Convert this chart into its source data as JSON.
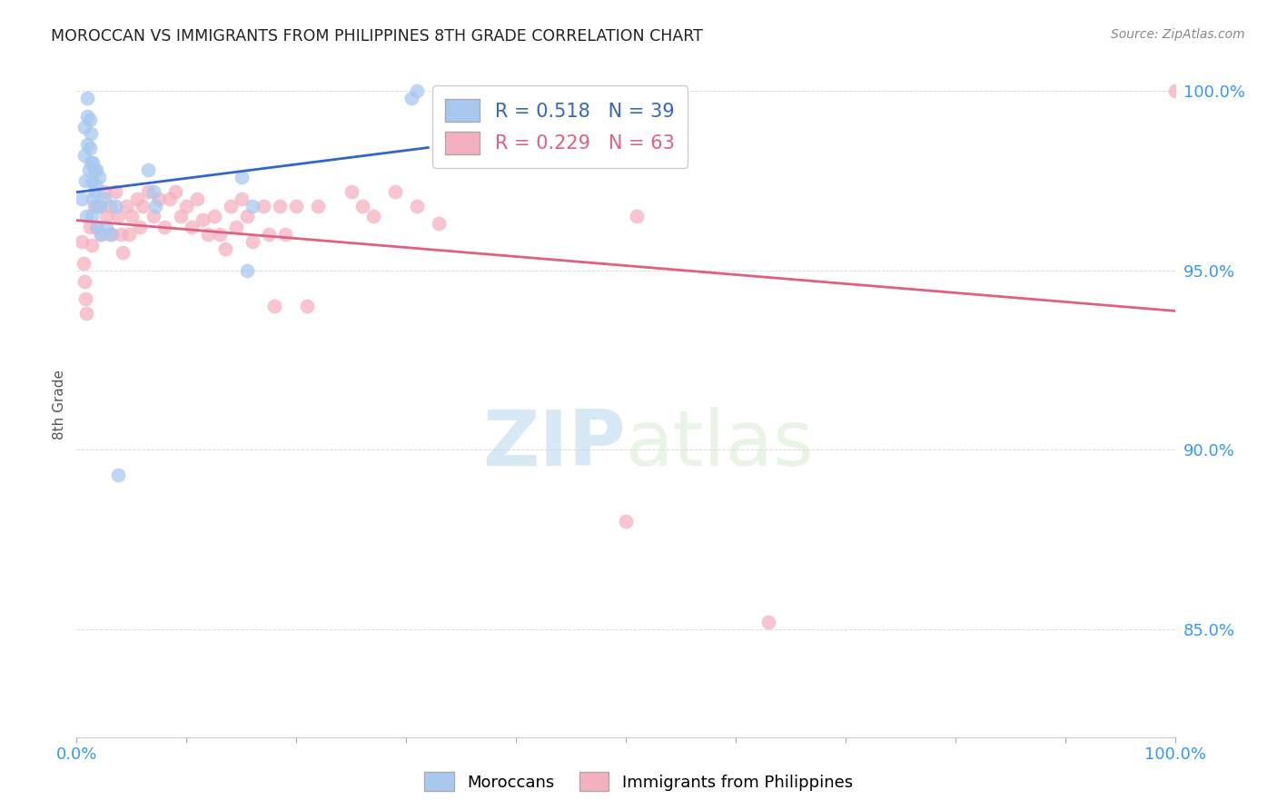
{
  "title": "MOROCCAN VS IMMIGRANTS FROM PHILIPPINES 8TH GRADE CORRELATION CHART",
  "source": "Source: ZipAtlas.com",
  "ylabel": "8th Grade",
  "xlim": [
    0.0,
    1.0
  ],
  "ylim": [
    0.82,
    1.005
  ],
  "yticks": [
    0.85,
    0.9,
    0.95,
    1.0
  ],
  "ytick_labels": [
    "85.0%",
    "90.0%",
    "95.0%",
    "100.0%"
  ],
  "xticks": [
    0.0,
    0.1,
    0.2,
    0.3,
    0.4,
    0.5,
    0.6,
    0.7,
    0.8,
    0.9,
    1.0
  ],
  "xtick_labels": [
    "0.0%",
    "",
    "",
    "",
    "",
    "",
    "",
    "",
    "",
    "",
    "100.0%"
  ],
  "blue_R": "0.518",
  "blue_N": "39",
  "pink_R": "0.229",
  "pink_N": "63",
  "blue_color": "#a8c8f0",
  "pink_color": "#f5b0c0",
  "blue_line_color": "#3366cc",
  "pink_line_color": "#e06080",
  "legend_label_blue": "Moroccans",
  "legend_label_pink": "Immigrants from Philippines",
  "watermark_zip": "ZIP",
  "watermark_atlas": "atlas",
  "blue_scatter_x": [
    0.005,
    0.007,
    0.007,
    0.008,
    0.009,
    0.01,
    0.01,
    0.01,
    0.011,
    0.012,
    0.012,
    0.013,
    0.013,
    0.014,
    0.014,
    0.015,
    0.015,
    0.016,
    0.016,
    0.017,
    0.018,
    0.018,
    0.019,
    0.02,
    0.021,
    0.022,
    0.025,
    0.027,
    0.03,
    0.035,
    0.038,
    0.065,
    0.07,
    0.072,
    0.15,
    0.155,
    0.16,
    0.305,
    0.31
  ],
  "blue_scatter_y": [
    0.97,
    0.99,
    0.982,
    0.975,
    0.965,
    0.998,
    0.993,
    0.985,
    0.978,
    0.992,
    0.984,
    0.988,
    0.98,
    0.975,
    0.965,
    0.98,
    0.97,
    0.978,
    0.972,
    0.974,
    0.978,
    0.968,
    0.962,
    0.976,
    0.968,
    0.96,
    0.97,
    0.962,
    0.96,
    0.968,
    0.893,
    0.978,
    0.972,
    0.968,
    0.976,
    0.95,
    0.968,
    0.998,
    1.0
  ],
  "pink_scatter_x": [
    0.005,
    0.006,
    0.007,
    0.008,
    0.009,
    0.012,
    0.014,
    0.016,
    0.018,
    0.02,
    0.022,
    0.025,
    0.027,
    0.03,
    0.032,
    0.035,
    0.038,
    0.04,
    0.042,
    0.045,
    0.048,
    0.05,
    0.055,
    0.058,
    0.06,
    0.065,
    0.07,
    0.075,
    0.08,
    0.085,
    0.09,
    0.095,
    0.1,
    0.105,
    0.11,
    0.115,
    0.12,
    0.125,
    0.13,
    0.135,
    0.14,
    0.145,
    0.15,
    0.155,
    0.16,
    0.17,
    0.175,
    0.18,
    0.185,
    0.19,
    0.2,
    0.21,
    0.22,
    0.25,
    0.26,
    0.27,
    0.29,
    0.31,
    0.33,
    0.5,
    0.51,
    0.63,
    1.0
  ],
  "pink_scatter_y": [
    0.958,
    0.952,
    0.947,
    0.942,
    0.938,
    0.962,
    0.957,
    0.968,
    0.962,
    0.968,
    0.96,
    0.972,
    0.965,
    0.968,
    0.96,
    0.972,
    0.965,
    0.96,
    0.955,
    0.968,
    0.96,
    0.965,
    0.97,
    0.962,
    0.968,
    0.972,
    0.965,
    0.97,
    0.962,
    0.97,
    0.972,
    0.965,
    0.968,
    0.962,
    0.97,
    0.964,
    0.96,
    0.965,
    0.96,
    0.956,
    0.968,
    0.962,
    0.97,
    0.965,
    0.958,
    0.968,
    0.96,
    0.94,
    0.968,
    0.96,
    0.968,
    0.94,
    0.968,
    0.972,
    0.968,
    0.965,
    0.972,
    0.968,
    0.963,
    0.88,
    0.965,
    0.852,
    1.0
  ],
  "background_color": "#ffffff",
  "grid_color": "#dddddd",
  "title_color": "#222222",
  "axis_label_color": "#555555",
  "tick_color": "#3399ff",
  "source_color": "#888888",
  "blue_line_x0": 0.0,
  "blue_line_x1": 0.32,
  "pink_line_x0": 0.0,
  "pink_line_x1": 1.0
}
